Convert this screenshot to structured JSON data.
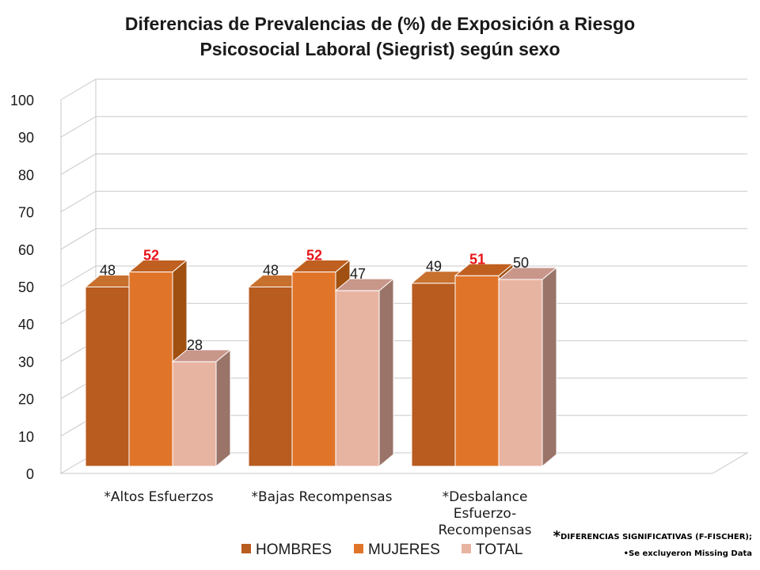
{
  "title_line1": "Diferencias de Prevalencias de (%) de Exposición a Riesgo",
  "title_line2": "Psicosocial Laboral (Siegrist) según sexo",
  "chart_data": {
    "type": "bar",
    "categories": [
      [
        "*Altos Esfuerzos"
      ],
      [
        "*Bajas Recompensas"
      ],
      [
        "*Desbalance",
        "Esfuerzo-",
        "Recompensas"
      ]
    ],
    "series": [
      {
        "name": "HOMBRES",
        "values": [
          48,
          48,
          49
        ],
        "color": "#b85c20",
        "side": "#8c4515",
        "top": "#c8702e"
      },
      {
        "name": "MUJERES",
        "values": [
          52,
          52,
          51
        ],
        "color": "#e0752a",
        "side": "#a05010",
        "top": "#c06020",
        "label_color": "#e8161a"
      },
      {
        "name": "TOTAL",
        "values": [
          28,
          47,
          50
        ],
        "color": "#e8b4a2",
        "side": "#9a7468",
        "top": "#c9968a"
      }
    ],
    "ylim": [
      0,
      100
    ],
    "yticks": [
      0,
      10,
      20,
      30,
      40,
      50,
      60,
      70,
      80,
      90,
      100
    ],
    "grid": true,
    "legend": "bottom"
  },
  "note1_star": "*",
  "note1_text": "DIFERENCIAS SIGNIFICATIVAS (F-FISCHER);",
  "note2_text": "•Se excluyeron Missing Data"
}
